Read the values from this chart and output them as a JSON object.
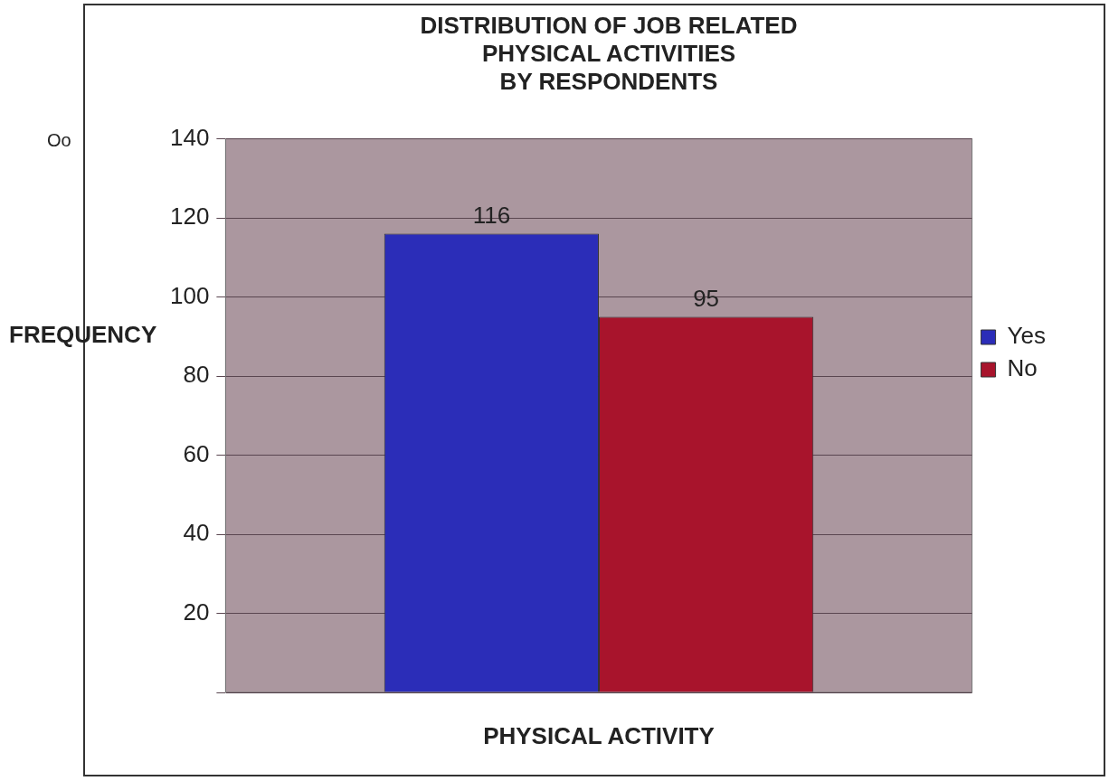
{
  "chart_data": {
    "type": "bar",
    "title": "DISTRIBUTION OF JOB RELATED\nPHYSICAL ACTIVITIES\nBY RESPONDENTS",
    "xlabel": "PHYSICAL ACTIVITY",
    "ylabel": "FREQUENCY",
    "annotations": [
      "Oo"
    ],
    "categories": [
      null
    ],
    "series": [
      {
        "name": "Yes",
        "color": "#2b2db8",
        "values": [
          116
        ]
      },
      {
        "name": "No",
        "color": "#a8142c",
        "values": [
          95
        ]
      }
    ],
    "ylim": [
      0,
      140
    ],
    "yticks": [
      {
        "value": 0,
        "label": null
      },
      20,
      40,
      60,
      80,
      100,
      120,
      140
    ],
    "grid": "y",
    "legend": "right",
    "data_labels": true
  }
}
